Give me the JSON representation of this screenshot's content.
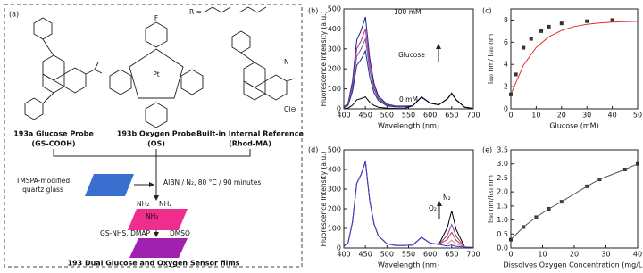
{
  "scheme": {
    "panel_label": "(a)",
    "r_label": "R =",
    "probes": [
      {
        "name": "193a Glucose Probe",
        "code": "(GS-COOH)"
      },
      {
        "name": "193b Oxygen Probe",
        "code": "(OS)"
      },
      {
        "name": "Built-in Internal Reference",
        "code": "(Rhod-MA)"
      }
    ],
    "atoms": {
      "pt": "Pt",
      "cl": "Cl⊖",
      "n": "N",
      "f": "F"
    },
    "substrate": [
      "TMSPA-modified",
      "quartz glass"
    ],
    "step1": "AIBN / N₂, 80 °C / 90 minutes",
    "amines": [
      "NH₂",
      "NH₂",
      "NH₂"
    ],
    "step2_left": "GS-NHS, DMAP",
    "step2_right": "DMSO",
    "product": "193 Dual Glucose and Oxygen Sensor films"
  },
  "chart_data": [
    {
      "type": "line",
      "panel_label": "(b)",
      "x_label": "Wavelength (nm)",
      "y_label": "Fluorescence Intensity (a.u.)",
      "annotations": [
        "100 mM",
        "0 mM",
        "Glucose"
      ],
      "x": [
        400,
        410,
        420,
        430,
        440,
        450,
        460,
        470,
        480,
        500,
        520,
        540,
        560,
        580,
        600,
        620,
        640,
        650,
        660,
        680,
        700
      ],
      "series": [
        {
          "color": "#1a1aa0",
          "values": [
            9,
            28,
            138,
            345,
            391,
            460,
            253,
            129,
            64,
            23,
            14,
            14,
            15,
            60,
            28,
            20,
            50,
            78,
            45,
            8,
            2
          ]
        },
        {
          "color": "#c03060",
          "values": [
            8,
            24,
            120,
            300,
            340,
            400,
            220,
            112,
            56,
            20,
            12,
            12,
            15,
            60,
            28,
            20,
            50,
            78,
            45,
            8,
            2
          ]
        },
        {
          "color": "#6060c0",
          "values": [
            7,
            21,
            105,
            263,
            298,
            350,
            193,
            98,
            49,
            18,
            11,
            11,
            15,
            60,
            28,
            20,
            50,
            78,
            45,
            8,
            2
          ]
        },
        {
          "color": "#203080",
          "values": [
            6,
            17,
            87,
            218,
            247,
            290,
            160,
            81,
            41,
            15,
            9,
            9,
            15,
            60,
            28,
            20,
            50,
            78,
            45,
            8,
            2
          ]
        },
        {
          "color": "#000000",
          "values": [
            1,
            4,
            18,
            45,
            51,
            60,
            33,
            17,
            8,
            3,
            2,
            2,
            15,
            58,
            28,
            20,
            50,
            76,
            45,
            8,
            2
          ]
        }
      ],
      "xlim": [
        400,
        700
      ],
      "xticks": [
        400,
        450,
        500,
        550,
        600,
        650,
        700
      ],
      "ylim": [
        0,
        500
      ],
      "yticks": [
        0,
        100,
        200,
        300,
        400,
        500
      ]
    },
    {
      "type": "scatter",
      "panel_label": "(c)",
      "x_label": "Glucose (mM)",
      "y_label": "I₄₄₀ nm/ I₅₈₀ nm",
      "series": [
        {
          "color": "#333333",
          "marker": "square",
          "x": [
            0,
            2,
            5,
            8,
            12,
            15,
            20,
            30,
            40
          ],
          "values": [
            1.3,
            3.1,
            5.5,
            6.3,
            7.0,
            7.4,
            7.7,
            7.9,
            8.0
          ]
        },
        {
          "color": "#e03030",
          "x": [
            0,
            5,
            10,
            15,
            20,
            25,
            30,
            35,
            40,
            45,
            50
          ],
          "values": [
            1.3,
            3.94,
            5.53,
            6.49,
            7.06,
            7.41,
            7.61,
            7.74,
            7.81,
            7.86,
            7.88
          ]
        }
      ],
      "xlim": [
        0,
        50
      ],
      "xticks": [
        0,
        10,
        20,
        30,
        40,
        50
      ],
      "ylim": [
        0,
        9
      ],
      "yticks": [
        0,
        2,
        4,
        6,
        8
      ]
    },
    {
      "type": "line",
      "panel_label": "(d)",
      "x_label": "Wavelength (nm)",
      "y_label": "Fluorescence Intensity (a.u.)",
      "annotations": [
        "O₂",
        "N₂"
      ],
      "x": [
        400,
        410,
        420,
        430,
        440,
        450,
        460,
        470,
        480,
        500,
        520,
        540,
        560,
        580,
        600,
        620,
        640,
        650,
        660,
        680,
        700
      ],
      "series": [
        {
          "color": "#000000",
          "values": [
            9,
            27,
            132,
            330,
            374,
            440,
            242,
            123,
            62,
            22,
            13,
            13,
            15,
            55,
            25,
            18,
            105,
            190,
            95,
            5,
            2
          ]
        },
        {
          "color": "#8040a0",
          "values": [
            9,
            27,
            132,
            330,
            374,
            440,
            242,
            123,
            62,
            22,
            13,
            13,
            15,
            55,
            25,
            18,
            66,
            120,
            60,
            5,
            2
          ]
        },
        {
          "color": "#d03040",
          "values": [
            9,
            27,
            132,
            330,
            374,
            440,
            242,
            123,
            62,
            22,
            13,
            13,
            15,
            55,
            25,
            18,
            44,
            80,
            40,
            5,
            2
          ]
        },
        {
          "color": "#e080a0",
          "values": [
            9,
            27,
            132,
            330,
            374,
            440,
            242,
            123,
            62,
            22,
            13,
            13,
            15,
            55,
            25,
            18,
            22,
            40,
            20,
            5,
            2
          ]
        },
        {
          "color": "#3040d0",
          "values": [
            9,
            27,
            132,
            330,
            374,
            440,
            242,
            123,
            62,
            22,
            13,
            13,
            15,
            55,
            25,
            18,
            10,
            15,
            8,
            5,
            2
          ]
        }
      ],
      "xlim": [
        400,
        700
      ],
      "xticks": [
        400,
        450,
        500,
        550,
        600,
        650,
        700
      ],
      "ylim": [
        0,
        500
      ],
      "yticks": [
        0,
        100,
        200,
        300,
        400,
        500
      ]
    },
    {
      "type": "scatter",
      "panel_label": "(e)",
      "x_label": "Dissolves Oxygen Concentration (mg/L)",
      "y_label": "I₅₈₀ nm/I₆₅₀ nm",
      "series": [
        {
          "color": "#333333",
          "marker": "square",
          "x": [
            0,
            4,
            8,
            12,
            16,
            24,
            28,
            36,
            40
          ],
          "values": [
            0.3,
            0.75,
            1.1,
            1.4,
            1.65,
            2.2,
            2.45,
            2.8,
            3.0
          ]
        },
        {
          "color": "#555555",
          "x": [
            0,
            4,
            8,
            12,
            16,
            24,
            28,
            36,
            40
          ],
          "values": [
            0.3,
            0.75,
            1.1,
            1.4,
            1.65,
            2.2,
            2.45,
            2.8,
            3.0
          ]
        }
      ],
      "xlim": [
        0,
        40
      ],
      "xticks": [
        0,
        10,
        20,
        30,
        40
      ],
      "ylim": [
        0,
        3.5
      ],
      "yticks": [
        {
          "value": 0,
          "label": "0.0"
        },
        0.5,
        {
          "value": 1,
          "label": "1.0"
        },
        1.5,
        {
          "value": 2,
          "label": "2.0"
        },
        2.5,
        {
          "value": 3,
          "label": "3.0"
        },
        3.5
      ]
    }
  ]
}
